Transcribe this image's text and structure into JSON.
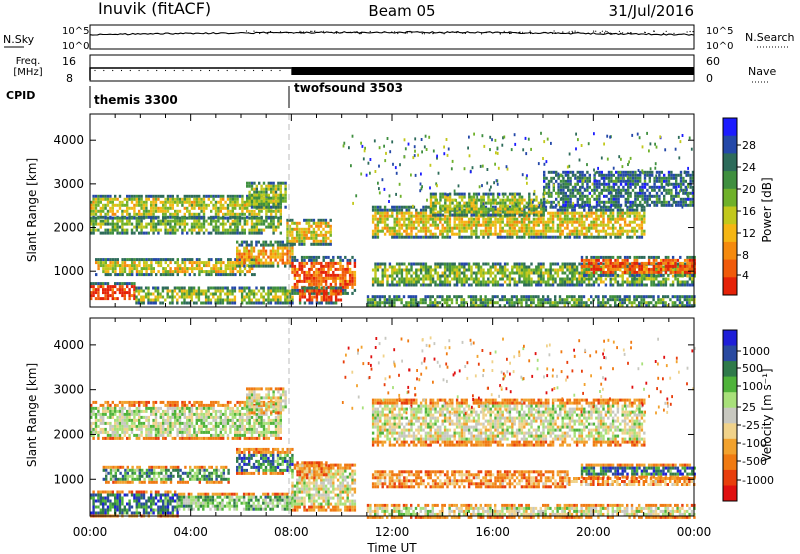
{
  "header": {
    "radar": "Inuvik (fitACF)",
    "beam": "Beam 05",
    "date": "31/Jul/2016"
  },
  "top_panels": {
    "nsky_label": "N.Sky",
    "nsearch_label": "N.Search",
    "nsky_ticks": [
      "10^5",
      "10^0"
    ],
    "nsearch_ticks": [
      "10^5",
      "10^0"
    ],
    "freq_label_1": "Freq.",
    "freq_label_2": "[MHz]",
    "freq_ticks": [
      "16",
      "8"
    ],
    "nave_label": "Nave",
    "nave_ticks": [
      "60",
      "0"
    ],
    "cpid_label": "CPID",
    "cpid_segments": [
      {
        "label": "themis 3300",
        "start_hour": 0,
        "end_hour": 8
      },
      {
        "label": "twofsound 3503",
        "start_hour": 8,
        "end_hour": 24
      }
    ]
  },
  "chart_data": [
    {
      "type": "heatmap",
      "name": "power",
      "ylabel": "Slant Range [km]",
      "ylim": [
        180,
        4600
      ],
      "y_ticks": [
        "1000",
        "2000",
        "3000",
        "4000"
      ],
      "y_tick_values": [
        1000,
        2000,
        3000,
        4000
      ],
      "colorbar_label": "Power [dB]",
      "colorbar_ticks": [
        "4",
        "8",
        "12",
        "16",
        "20",
        "24",
        "28"
      ],
      "colorbar_colors": [
        "#1c1cff",
        "#2448a8",
        "#2d6b5a",
        "#3f8f3f",
        "#6fb12a",
        "#c2c81c",
        "#f5b614",
        "#f58a0e",
        "#f05a0a",
        "#e52208"
      ],
      "bands": [
        {
          "t0": 0,
          "t1": 7.6,
          "r0": 2250,
          "r1": 2750,
          "level": 0.55
        },
        {
          "t0": 0,
          "t1": 7.6,
          "r0": 1900,
          "r1": 2250,
          "level": 0.45
        },
        {
          "t0": 0,
          "t1": 1.8,
          "r0": 350,
          "r1": 750,
          "level": 0.95
        },
        {
          "t0": 1.8,
          "t1": 8,
          "r0": 300,
          "r1": 650,
          "level": 0.5
        },
        {
          "t0": 0.2,
          "t1": 6.5,
          "r0": 950,
          "r1": 1300,
          "level": 0.6
        },
        {
          "t0": 5.8,
          "t1": 8,
          "r0": 1100,
          "r1": 1700,
          "level": 0.7
        },
        {
          "t0": 6.2,
          "t1": 7.8,
          "r0": 2500,
          "r1": 3050,
          "level": 0.45
        },
        {
          "t0": 8,
          "t1": 10.5,
          "r0": 500,
          "r1": 1350,
          "level": 0.85
        },
        {
          "t0": 8.3,
          "t1": 10,
          "r0": 300,
          "r1": 650,
          "level": 0.9
        },
        {
          "t0": 7.8,
          "t1": 9.6,
          "r0": 1650,
          "r1": 2200,
          "level": 0.6
        },
        {
          "t0": 11.2,
          "t1": 22,
          "r0": 1750,
          "r1": 2500,
          "level": 0.6
        },
        {
          "t0": 13.5,
          "t1": 18,
          "r0": 2300,
          "r1": 2800,
          "level": 0.5
        },
        {
          "t0": 11.2,
          "t1": 24,
          "r0": 700,
          "r1": 1200,
          "level": 0.45
        },
        {
          "t0": 19.5,
          "t1": 24,
          "r0": 900,
          "r1": 1350,
          "level": 0.85
        },
        {
          "t0": 11,
          "t1": 24,
          "r0": 180,
          "r1": 450,
          "level": 0.35
        },
        {
          "t0": 18,
          "t1": 24,
          "r0": 2500,
          "r1": 3300,
          "level": 0.25
        }
      ]
    },
    {
      "type": "heatmap",
      "name": "velocity",
      "ylabel": "Slant Range [km]",
      "ylim": [
        180,
        4600
      ],
      "y_ticks": [
        "1000",
        "2000",
        "3000",
        "4000"
      ],
      "y_tick_values": [
        1000,
        2000,
        3000,
        4000
      ],
      "colorbar_label": "Velocity [m s⁻¹]",
      "colorbar_ticks": [
        "1000",
        "500",
        "100",
        "25",
        "-25",
        "-100",
        "-500",
        "-1000"
      ],
      "colorbar_colors": [
        "#1f1fd8",
        "#2a4aa0",
        "#2f7a4a",
        "#4fb33a",
        "#a8e07a",
        "#c8c8c0",
        "#f0d28a",
        "#f2a22e",
        "#f07a12",
        "#e83e0c",
        "#e01010"
      ],
      "bands": [
        {
          "t0": 0,
          "t1": 7.6,
          "r0": 1900,
          "r1": 2750,
          "level": 0.55
        },
        {
          "t0": 0,
          "t1": 3.5,
          "r0": 200,
          "r1": 750,
          "level": 0.8
        },
        {
          "t0": 3.5,
          "t1": 8,
          "r0": 300,
          "r1": 700,
          "level": 0.65
        },
        {
          "t0": 0.5,
          "t1": 5.5,
          "r0": 950,
          "r1": 1300,
          "level": 0.7
        },
        {
          "t0": 5.8,
          "t1": 8,
          "r0": 1100,
          "r1": 1700,
          "level": 0.78
        },
        {
          "t0": 6.2,
          "t1": 7.8,
          "r0": 2500,
          "r1": 3050,
          "level": 0.5
        },
        {
          "t0": 8,
          "t1": 10.5,
          "r0": 300,
          "r1": 1350,
          "level": 0.5
        },
        {
          "t0": 8.2,
          "t1": 9.5,
          "r0": 1000,
          "r1": 1400,
          "level": 0.3
        },
        {
          "t0": 11.2,
          "t1": 22,
          "r0": 1750,
          "r1": 2800,
          "level": 0.5
        },
        {
          "t0": 11.2,
          "t1": 19,
          "r0": 850,
          "r1": 1200,
          "level": 0.3
        },
        {
          "t0": 19.5,
          "t1": 24,
          "r0": 1050,
          "r1": 1350,
          "level": 0.8
        },
        {
          "t0": 19,
          "t1": 24,
          "r0": 850,
          "r1": 1050,
          "level": 0.3
        },
        {
          "t0": 11,
          "t1": 24,
          "r0": 180,
          "r1": 450,
          "level": 0.5
        }
      ]
    }
  ],
  "time_axis": {
    "xlabel": "Time UT",
    "ticks": [
      "00:00",
      "04:00",
      "08:00",
      "12:00",
      "16:00",
      "20:00",
      "00:00"
    ],
    "tick_hours": [
      0,
      4,
      8,
      12,
      16,
      20,
      24
    ]
  }
}
